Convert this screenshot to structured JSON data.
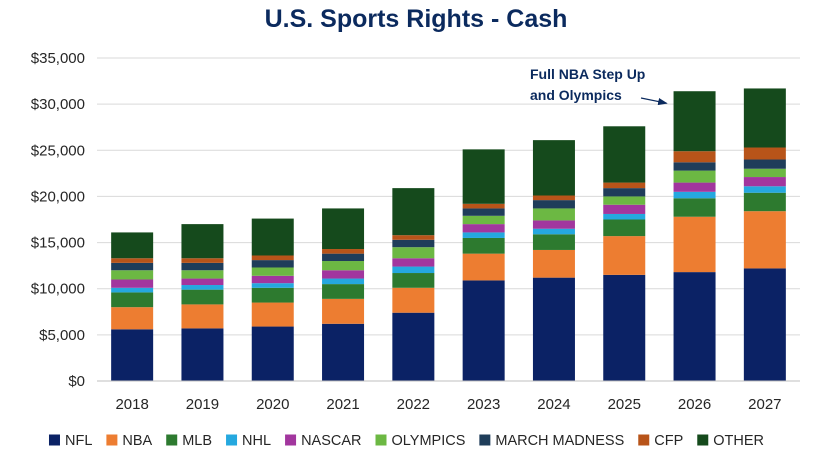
{
  "chart_data": {
    "type": "bar",
    "stacked": true,
    "title": "U.S. Sports Rights - Cash",
    "xlabel": "",
    "ylabel": "",
    "categories": [
      "2018",
      "2019",
      "2020",
      "2021",
      "2022",
      "2023",
      "2024",
      "2025",
      "2026",
      "2027"
    ],
    "ylim": [
      0,
      35000
    ],
    "yticks": [
      0,
      5000,
      10000,
      15000,
      20000,
      25000,
      30000,
      35000
    ],
    "ytick_labels": [
      "$0",
      "$5,000",
      "$10,000",
      "$15,000",
      "$20,000",
      "$25,000",
      "$30,000",
      "$35,000"
    ],
    "grid": true,
    "legend_position": "bottom",
    "series": [
      {
        "name": "NFL",
        "color": "#0b2265",
        "values": [
          5600,
          5700,
          5900,
          6200,
          7400,
          10900,
          11200,
          11500,
          11800,
          12200
        ]
      },
      {
        "name": "NBA",
        "color": "#ed7d31",
        "values": [
          2400,
          2600,
          2600,
          2700,
          2700,
          2900,
          3000,
          4200,
          6000,
          6200
        ]
      },
      {
        "name": "MLB",
        "color": "#2d7a2f",
        "values": [
          1600,
          1600,
          1600,
          1600,
          1600,
          1700,
          1700,
          1800,
          2000,
          2000
        ]
      },
      {
        "name": "NHL",
        "color": "#25a8df",
        "values": [
          500,
          500,
          500,
          600,
          700,
          600,
          600,
          600,
          700,
          700
        ]
      },
      {
        "name": "NASCAR",
        "color": "#a2369e",
        "values": [
          900,
          700,
          800,
          900,
          900,
          900,
          900,
          1000,
          1000,
          1000
        ]
      },
      {
        "name": "OLYMPICS",
        "color": "#6cb843",
        "values": [
          1000,
          900,
          900,
          1000,
          1200,
          900,
          1300,
          900,
          1300,
          900
        ]
      },
      {
        "name": "MARCH MADNESS",
        "color": "#1f3d5a",
        "values": [
          800,
          800,
          800,
          800,
          800,
          800,
          900,
          900,
          900,
          1000
        ]
      },
      {
        "name": "CFP",
        "color": "#b85419",
        "values": [
          500,
          500,
          500,
          500,
          500,
          500,
          500,
          600,
          1200,
          1300
        ]
      },
      {
        "name": "OTHER",
        "color": "#154a1c",
        "values": [
          2800,
          3700,
          4000,
          4400,
          5100,
          5900,
          6000,
          6100,
          6500,
          6400
        ]
      }
    ],
    "annotations": [
      {
        "text_lines": [
          "Full NBA Step Up",
          "and Olympics"
        ],
        "points_to": "2026"
      }
    ],
    "axis_color": "#bfbfbf",
    "grid_color": "#d9d9d9",
    "title_color": "#0b2a5e"
  }
}
